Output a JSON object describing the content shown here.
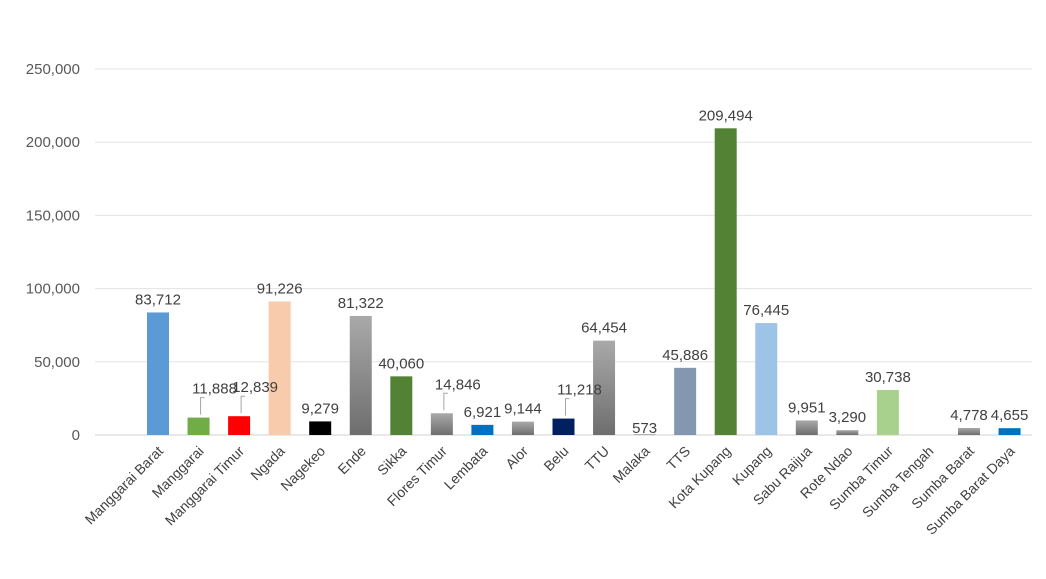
{
  "chart_data": {
    "type": "bar",
    "categories": [
      "Manggarai Barat",
      "Manggarai",
      "Manggarai Timur",
      "Ngada",
      "Nagekeo",
      "Ende",
      "Sikka",
      "Flores Timur",
      "Lembata",
      "Alor",
      "Belu",
      "TTU",
      "Malaka",
      "TTS",
      "Kota Kupang",
      "Kupang",
      "Sabu Raijua",
      "Rote Ndao",
      "Sumba Timur",
      "Sumba Tengah",
      "Sumba Barat",
      "Sumba Barat Daya"
    ],
    "values": [
      83712,
      11888,
      12839,
      91226,
      9279,
      81322,
      40060,
      14846,
      6921,
      9144,
      11218,
      64454,
      573,
      45886,
      209494,
      76445,
      9951,
      3290,
      30738,
      0,
      4778,
      4655
    ],
    "labels": [
      "83,712",
      "11,888",
      "12,839",
      "91,226",
      "9,279",
      "81,322",
      "40,060",
      "14,846",
      "6,921",
      "9,144",
      "11,218",
      "64,454",
      "573",
      "45,886",
      "209,494",
      "76,445",
      "9,951",
      "3,290",
      "30,738",
      "",
      "4,778",
      "4,655"
    ],
    "colors": [
      "#5b9bd5",
      "#70ad47",
      "#ff0000",
      "#f8cbad",
      "#000000",
      "#8f8f8f",
      "#548235",
      "#a5a5a5",
      "#0070c0",
      "#7f7f7f",
      "#002060",
      "#8f8f8f",
      "#a5a5a5",
      "#8497b0",
      "#548235",
      "#9dc3e6",
      "#a5a5a5",
      "#a5a5a5",
      "#a9d18e",
      "#a5a5a5",
      "#7f7f7f",
      "#0070c0"
    ],
    "gradient": [
      false,
      false,
      false,
      false,
      false,
      true,
      false,
      true,
      false,
      true,
      false,
      true,
      false,
      false,
      false,
      false,
      true,
      true,
      false,
      false,
      true,
      false
    ],
    "leaders": [
      false,
      true,
      true,
      false,
      false,
      false,
      false,
      true,
      false,
      false,
      true,
      false,
      false,
      false,
      false,
      false,
      false,
      false,
      false,
      false,
      false,
      false
    ],
    "yticks": [
      0,
      50000,
      100000,
      150000,
      200000,
      250000
    ],
    "ytick_labels": [
      "0",
      "50,000",
      "100,000",
      "150,000",
      "200,000",
      "250,000"
    ],
    "ylim": [
      0,
      250000
    ],
    "title": "",
    "xlabel": "",
    "ylabel": "",
    "grid": true,
    "legend": "none"
  }
}
